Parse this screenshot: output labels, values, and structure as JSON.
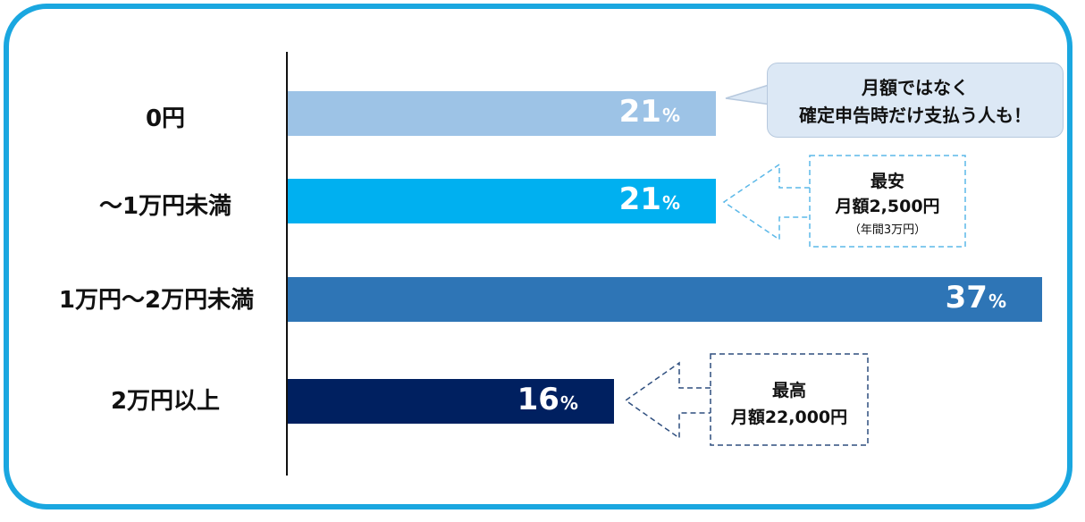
{
  "chart_data": {
    "type": "bar",
    "orientation": "horizontal",
    "categories": [
      "0円",
      "～1万円未満",
      "1万円～2万円未満",
      "2万円以上"
    ],
    "values": [
      21,
      21,
      37,
      16
    ],
    "value_unit": "%",
    "bar_colors": [
      "#9dc3e6",
      "#00b0f0",
      "#2e75b6",
      "#002060"
    ],
    "annotations": [
      {
        "category": "0円",
        "lines": [
          "月額ではなく",
          "確定申告時だけ支払う人も！"
        ]
      },
      {
        "category": "～1万円未満",
        "lines": [
          "最安",
          "月額2,500円",
          "（年間3万円）"
        ]
      },
      {
        "category": "2万円以上",
        "lines": [
          "最高",
          "月額22,000円"
        ]
      }
    ]
  },
  "colors": {
    "frame": "#1aa7e0",
    "axis": "#111111",
    "callout_fill": "#dce8f5"
  }
}
